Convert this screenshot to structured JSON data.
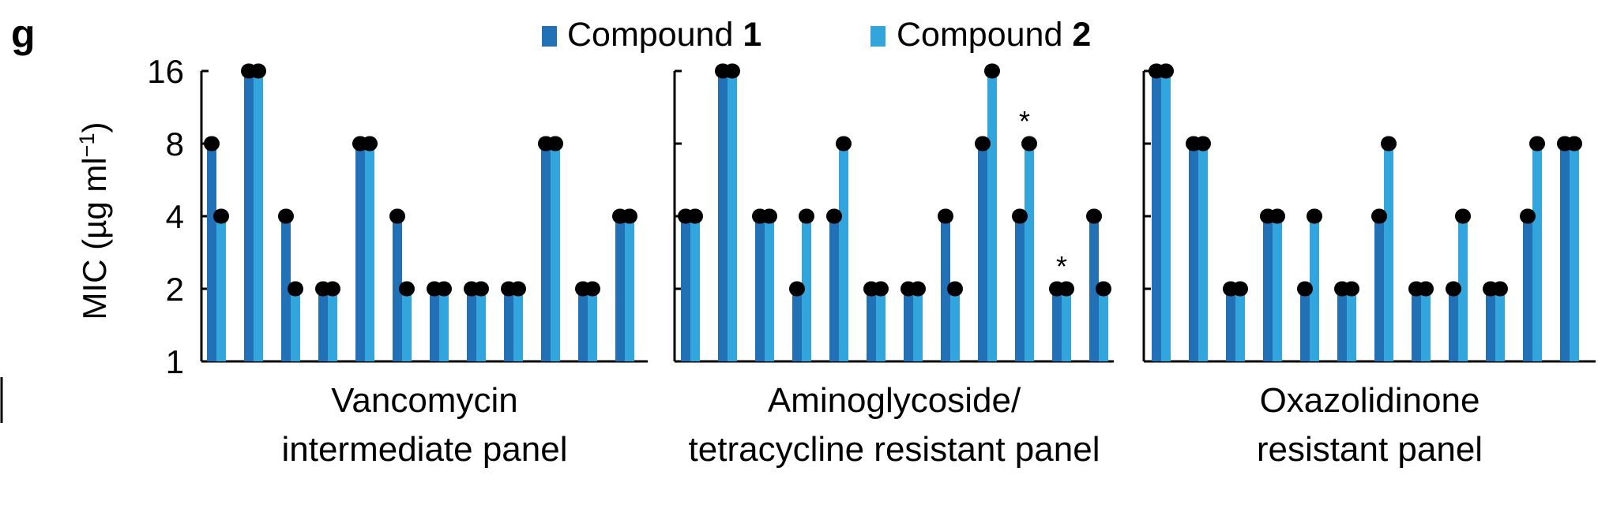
{
  "panel_label": "g",
  "chart_data": {
    "type": "bar",
    "y_scale": "log2",
    "ylabel": "MIC (µg ml",
    "ylabel_sup": "−1",
    "ylabel_close": ")",
    "yticks": [
      1,
      2,
      4,
      8,
      16
    ],
    "ytick_labels": [
      "1",
      "2",
      "4",
      "8",
      "16"
    ],
    "ylim": [
      1,
      16
    ],
    "grid": false,
    "legend_position": "top-center",
    "colors": {
      "compound_1": "#2270b5",
      "compound_2": "#33a5dd",
      "cap": "#000000"
    },
    "series": [
      {
        "name_prefix": "Compound ",
        "name_bold": "1",
        "color": "#2270b5"
      },
      {
        "name_prefix": "Compound ",
        "name_bold": "2",
        "color": "#33a5dd"
      }
    ],
    "panels": [
      {
        "label_lines": [
          "Vancomycin",
          "intermediate panel"
        ],
        "show_y_labels": true,
        "compound_1": [
          8,
          16,
          4,
          2,
          8,
          4,
          2,
          2,
          2,
          8,
          2,
          4
        ],
        "compound_2": [
          4,
          16,
          2,
          2,
          8,
          2,
          2,
          2,
          2,
          8,
          2,
          4
        ],
        "asterisks": []
      },
      {
        "label_lines": [
          "Aminoglycoside/",
          "tetracycline resistant panel"
        ],
        "show_y_labels": false,
        "compound_1": [
          4,
          16,
          4,
          2,
          4,
          2,
          2,
          4,
          8,
          4,
          2,
          4
        ],
        "compound_2": [
          4,
          16,
          4,
          4,
          8,
          2,
          2,
          2,
          16,
          8,
          2,
          2
        ],
        "asterisks": [
          {
            "group": 10,
            "text": "*"
          },
          {
            "group": 11,
            "text": "*"
          }
        ]
      },
      {
        "label_lines": [
          "Oxazolidinone",
          "resistant panel"
        ],
        "show_y_labels": false,
        "compound_1": [
          16,
          8,
          2,
          4,
          2,
          2,
          4,
          2,
          2,
          2,
          4,
          8
        ],
        "compound_2": [
          16,
          8,
          2,
          4,
          4,
          2,
          8,
          2,
          4,
          2,
          8,
          8
        ],
        "asterisks": []
      }
    ]
  }
}
